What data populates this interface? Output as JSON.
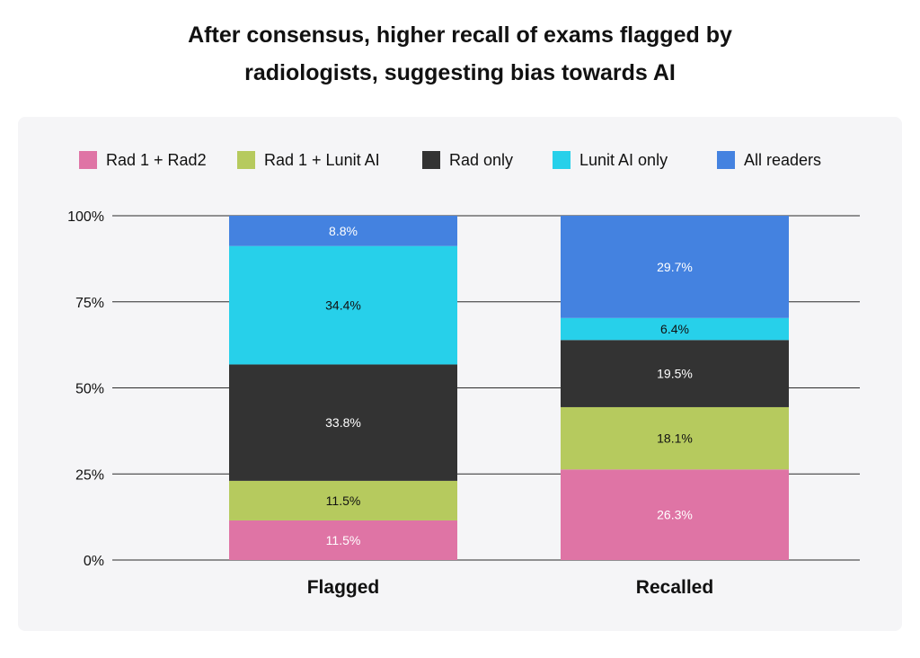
{
  "chart_data": {
    "type": "bar",
    "stacked": true,
    "title_lines": [
      "After consensus, higher recall of exams flagged by",
      "radiologists, suggesting bias towards AI"
    ],
    "categories": [
      "Flagged",
      "Recalled"
    ],
    "yticks": [
      "0%",
      "25%",
      "50%",
      "75%",
      "100%"
    ],
    "ylim": [
      0,
      100
    ],
    "legend_position": "top",
    "grid": true,
    "series": [
      {
        "name": "Rad 1 + Rad2",
        "color": "#df74a5",
        "label_color": "#ffffff",
        "values": [
          11.5,
          26.3
        ],
        "labels": [
          "11.5%",
          "26.3%"
        ]
      },
      {
        "name": "Rad 1 + Lunit AI",
        "color": "#b6ca5e",
        "label_color": "#111111",
        "values": [
          11.5,
          18.1
        ],
        "labels": [
          "11.5%",
          "18.1%"
        ]
      },
      {
        "name": "Rad only",
        "color": "#333333",
        "label_color": "#ffffff",
        "values": [
          33.8,
          19.5
        ],
        "labels": [
          "33.8%",
          "19.5%"
        ]
      },
      {
        "name": "Lunit AI only",
        "color": "#27d0ea",
        "label_color": "#111111",
        "values": [
          34.4,
          6.4
        ],
        "labels": [
          "34.4%",
          "6.4%"
        ]
      },
      {
        "name": "All readers",
        "color": "#4482e0",
        "label_color": "#ffffff",
        "values": [
          8.8,
          29.7
        ],
        "labels": [
          "8.8%",
          "29.7%"
        ]
      }
    ]
  }
}
